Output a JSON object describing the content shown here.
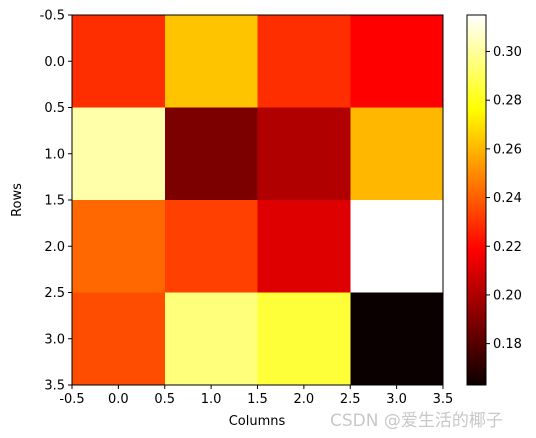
{
  "chart_data": {
    "type": "heatmap",
    "xlabel": "Columns",
    "ylabel": "Rows",
    "x_ticks": [
      "-0.5",
      "0.0",
      "0.5",
      "1.0",
      "1.5",
      "2.0",
      "2.5",
      "3.0",
      "3.5"
    ],
    "y_ticks": [
      "-0.5",
      "0.0",
      "0.5",
      "1.0",
      "1.5",
      "2.0",
      "2.5",
      "3.0",
      "3.5"
    ],
    "xlim": [
      -0.5,
      3.5
    ],
    "ylim": [
      3.5,
      -0.5
    ],
    "colormap": "hot",
    "colorbar": {
      "range": [
        0.163,
        0.315
      ],
      "ticks": [
        "0.18",
        "0.20",
        "0.22",
        "0.24",
        "0.26",
        "0.28",
        "0.30"
      ]
    },
    "rows": [
      0,
      1,
      2,
      3
    ],
    "columns": [
      0,
      1,
      2,
      3
    ],
    "values": [
      [
        0.229,
        0.263,
        0.229,
        0.217
      ],
      [
        0.302,
        0.188,
        0.199,
        0.26
      ],
      [
        0.242,
        0.233,
        0.209,
        0.315
      ],
      [
        0.236,
        0.295,
        0.285,
        0.163
      ]
    ]
  },
  "watermark": "CSDN @爱生活的椰子"
}
